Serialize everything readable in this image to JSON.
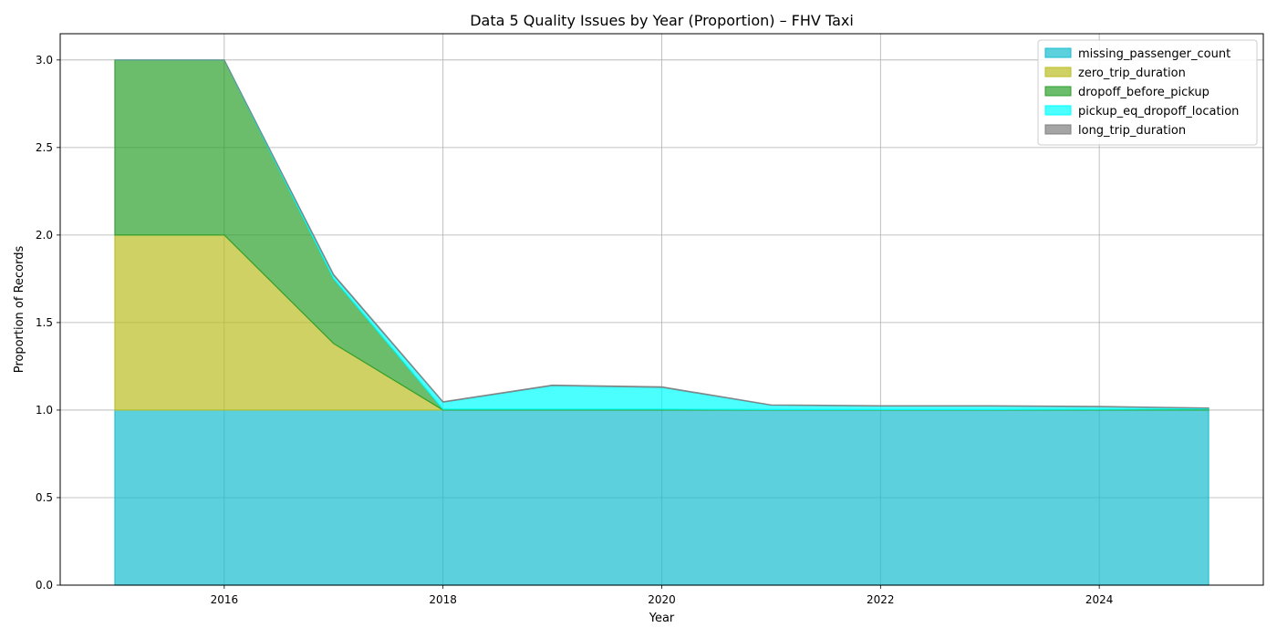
{
  "chart_data": {
    "type": "area",
    "stacked": true,
    "title": "Data 5 Quality Issues by Year (Proportion) – FHV Taxi",
    "xlabel": "Year",
    "ylabel": "Proportion of Records",
    "x": [
      2015,
      2016,
      2017,
      2018,
      2019,
      2020,
      2021,
      2022,
      2023,
      2024,
      2025
    ],
    "xlim": [
      2014.5,
      2025.5
    ],
    "ylim": [
      0,
      3.15
    ],
    "xticks": [
      2016,
      2018,
      2020,
      2022,
      2024
    ],
    "xtick_labels": [
      "2016",
      "2018",
      "2020",
      "2022",
      "2024"
    ],
    "yticks": [
      0,
      0.5,
      1.0,
      1.5,
      2.0,
      2.5,
      3.0
    ],
    "ytick_labels": [
      "0.0",
      "0.5",
      "1.0",
      "1.5",
      "2.0",
      "2.5",
      "3.0"
    ],
    "grid": true,
    "legend_position": "top-right",
    "series": [
      {
        "name": "missing_passenger_count",
        "color": "#17becf",
        "values": [
          1,
          1,
          1,
          1,
          1,
          1,
          1,
          1,
          1,
          1,
          1
        ]
      },
      {
        "name": "zero_trip_duration",
        "color": "#bcbd22",
        "values": [
          1,
          1,
          0.38,
          0,
          0,
          0,
          0,
          0,
          0,
          0,
          0
        ]
      },
      {
        "name": "dropoff_before_pickup",
        "color": "#2ca02c",
        "values": [
          1,
          1,
          0.37,
          0.005,
          0.005,
          0.005,
          0.003,
          0.003,
          0.003,
          0.004,
          0.006
        ]
      },
      {
        "name": "pickup_eq_dropoff_location",
        "color": "#00ffff",
        "values": [
          0,
          0,
          0.02,
          0.04,
          0.135,
          0.125,
          0.025,
          0.02,
          0.02,
          0.015,
          0.005
        ]
      },
      {
        "name": "long_trip_duration",
        "color": "#7f7f7f",
        "values": [
          0,
          0,
          0.005,
          0.003,
          0.003,
          0.003,
          0.002,
          0.002,
          0.002,
          0.002,
          0.001
        ]
      }
    ]
  }
}
